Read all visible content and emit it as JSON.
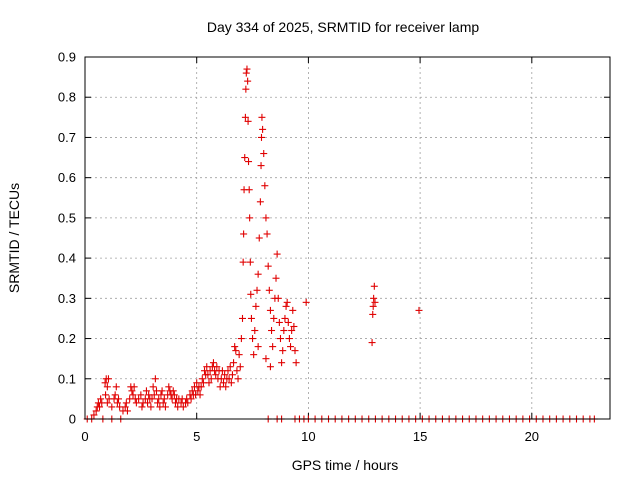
{
  "chart_data": {
    "type": "scatter",
    "title": "Day 334 of 2025, SRMTID for receiver lamp",
    "xlabel": "GPS time / hours",
    "ylabel": "SRMTID / TECUs",
    "xlim": [
      0,
      23.5
    ],
    "ylim": [
      0,
      0.9
    ],
    "x_ticks": [
      0,
      5,
      10,
      15,
      20
    ],
    "x_tick_labels": [
      "0",
      "5",
      "10",
      "15",
      "20"
    ],
    "y_ticks": [
      0,
      0.1,
      0.2,
      0.3,
      0.4,
      0.5,
      0.6,
      0.7,
      0.8,
      0.9
    ],
    "y_tick_labels": [
      "0",
      "0.1",
      "0.2",
      "0.3",
      "0.4",
      "0.5",
      "0.6",
      "0.7",
      "0.8",
      "0.9"
    ],
    "grid": true,
    "marker": "+",
    "color": "#e00000",
    "series": [
      {
        "name": "SRMTID",
        "points": [
          [
            0.1,
            0.0
          ],
          [
            0.3,
            0.0
          ],
          [
            0.8,
            0.0
          ],
          [
            1.2,
            0.0
          ],
          [
            1.6,
            0.0
          ],
          [
            0.4,
            0.01
          ],
          [
            0.5,
            0.02
          ],
          [
            0.55,
            0.03
          ],
          [
            0.6,
            0.04
          ],
          [
            0.65,
            0.03
          ],
          [
            0.7,
            0.05
          ],
          [
            0.75,
            0.04
          ],
          [
            0.9,
            0.09
          ],
          [
            0.95,
            0.1
          ],
          [
            1.0,
            0.08
          ],
          [
            1.05,
            0.1
          ],
          [
            0.92,
            0.06
          ],
          [
            1.0,
            0.04
          ],
          [
            1.08,
            0.05
          ],
          [
            1.2,
            0.03
          ],
          [
            1.3,
            0.05
          ],
          [
            1.35,
            0.06
          ],
          [
            1.4,
            0.08
          ],
          [
            1.45,
            0.04
          ],
          [
            1.5,
            0.05
          ],
          [
            1.55,
            0.03
          ],
          [
            1.7,
            0.02
          ],
          [
            1.8,
            0.03
          ],
          [
            1.85,
            0.04
          ],
          [
            1.9,
            0.02
          ],
          [
            2.0,
            0.05
          ],
          [
            2.05,
            0.08
          ],
          [
            2.1,
            0.07
          ],
          [
            2.15,
            0.06
          ],
          [
            2.2,
            0.08
          ],
          [
            2.25,
            0.05
          ],
          [
            2.3,
            0.04
          ],
          [
            2.4,
            0.05
          ],
          [
            2.5,
            0.06
          ],
          [
            2.55,
            0.03
          ],
          [
            2.6,
            0.04
          ],
          [
            2.7,
            0.05
          ],
          [
            2.75,
            0.07
          ],
          [
            2.8,
            0.04
          ],
          [
            2.85,
            0.06
          ],
          [
            2.9,
            0.05
          ],
          [
            2.95,
            0.03
          ],
          [
            3.0,
            0.05
          ],
          [
            3.05,
            0.08
          ],
          [
            3.1,
            0.06
          ],
          [
            3.15,
            0.1
          ],
          [
            3.2,
            0.07
          ],
          [
            3.25,
            0.04
          ],
          [
            3.3,
            0.05
          ],
          [
            3.35,
            0.03
          ],
          [
            3.4,
            0.06
          ],
          [
            3.45,
            0.07
          ],
          [
            3.5,
            0.04
          ],
          [
            3.55,
            0.05
          ],
          [
            3.6,
            0.03
          ],
          [
            3.7,
            0.06
          ],
          [
            3.75,
            0.08
          ],
          [
            3.8,
            0.07
          ],
          [
            3.85,
            0.06
          ],
          [
            3.9,
            0.05
          ],
          [
            3.95,
            0.07
          ],
          [
            4.0,
            0.06
          ],
          [
            4.05,
            0.04
          ],
          [
            4.1,
            0.05
          ],
          [
            4.15,
            0.03
          ],
          [
            4.2,
            0.05
          ],
          [
            4.3,
            0.04
          ],
          [
            4.35,
            0.05
          ],
          [
            4.4,
            0.03
          ],
          [
            4.5,
            0.04
          ],
          [
            4.55,
            0.05
          ],
          [
            4.6,
            0.04
          ],
          [
            4.7,
            0.06
          ],
          [
            4.75,
            0.05
          ],
          [
            4.8,
            0.07
          ],
          [
            4.85,
            0.06
          ],
          [
            4.9,
            0.08
          ],
          [
            4.95,
            0.06
          ],
          [
            5.0,
            0.09
          ],
          [
            5.05,
            0.07
          ],
          [
            5.1,
            0.08
          ],
          [
            5.15,
            0.06
          ],
          [
            5.2,
            0.08
          ],
          [
            5.25,
            0.1
          ],
          [
            5.3,
            0.09
          ],
          [
            5.35,
            0.12
          ],
          [
            5.4,
            0.11
          ],
          [
            5.45,
            0.13
          ],
          [
            5.5,
            0.11
          ],
          [
            5.55,
            0.09
          ],
          [
            5.6,
            0.12
          ],
          [
            5.65,
            0.1
          ],
          [
            5.7,
            0.13
          ],
          [
            5.75,
            0.14
          ],
          [
            5.8,
            0.12
          ],
          [
            5.85,
            0.11
          ],
          [
            5.9,
            0.13
          ],
          [
            5.95,
            0.1
          ],
          [
            6.0,
            0.12
          ],
          [
            6.05,
            0.08
          ],
          [
            6.1,
            0.1
          ],
          [
            6.15,
            0.12
          ],
          [
            6.2,
            0.09
          ],
          [
            6.25,
            0.11
          ],
          [
            6.3,
            0.08
          ],
          [
            6.35,
            0.1
          ],
          [
            6.4,
            0.12
          ],
          [
            6.45,
            0.1
          ],
          [
            6.5,
            0.13
          ],
          [
            6.55,
            0.09
          ],
          [
            6.6,
            0.11
          ],
          [
            6.65,
            0.14
          ],
          [
            6.7,
            0.18
          ],
          [
            6.75,
            0.17
          ],
          [
            6.8,
            0.12
          ],
          [
            6.85,
            0.1
          ],
          [
            6.9,
            0.16
          ],
          [
            6.95,
            0.13
          ],
          [
            7.0,
            0.2
          ],
          [
            7.05,
            0.25
          ],
          [
            7.08,
            0.39
          ],
          [
            7.1,
            0.46
          ],
          [
            7.12,
            0.57
          ],
          [
            7.15,
            0.65
          ],
          [
            7.18,
            0.75
          ],
          [
            7.2,
            0.82
          ],
          [
            7.22,
            0.86
          ],
          [
            7.25,
            0.87
          ],
          [
            7.28,
            0.84
          ],
          [
            7.3,
            0.74
          ],
          [
            7.32,
            0.64
          ],
          [
            7.35,
            0.57
          ],
          [
            7.37,
            0.5
          ],
          [
            7.4,
            0.39
          ],
          [
            7.42,
            0.31
          ],
          [
            7.45,
            0.25
          ],
          [
            7.5,
            0.2
          ],
          [
            7.55,
            0.16
          ],
          [
            7.6,
            0.22
          ],
          [
            7.65,
            0.28
          ],
          [
            7.7,
            0.32
          ],
          [
            7.75,
            0.36
          ],
          [
            7.8,
            0.45
          ],
          [
            7.85,
            0.54
          ],
          [
            7.88,
            0.63
          ],
          [
            7.9,
            0.7
          ],
          [
            7.92,
            0.75
          ],
          [
            7.95,
            0.72
          ],
          [
            8.0,
            0.66
          ],
          [
            8.05,
            0.58
          ],
          [
            8.1,
            0.5
          ],
          [
            8.15,
            0.46
          ],
          [
            8.2,
            0.38
          ],
          [
            8.25,
            0.32
          ],
          [
            8.3,
            0.27
          ],
          [
            8.35,
            0.22
          ],
          [
            8.4,
            0.18
          ],
          [
            8.45,
            0.25
          ],
          [
            8.5,
            0.3
          ],
          [
            8.55,
            0.35
          ],
          [
            8.6,
            0.41
          ],
          [
            8.65,
            0.3
          ],
          [
            8.7,
            0.24
          ],
          [
            8.75,
            0.2
          ],
          [
            8.8,
            0.14
          ],
          [
            8.85,
            0.17
          ],
          [
            8.9,
            0.22
          ],
          [
            8.95,
            0.25
          ],
          [
            9.0,
            0.28
          ],
          [
            9.05,
            0.29
          ],
          [
            9.1,
            0.24
          ],
          [
            9.15,
            0.2
          ],
          [
            9.2,
            0.18
          ],
          [
            9.25,
            0.22
          ],
          [
            9.3,
            0.27
          ],
          [
            9.35,
            0.23
          ],
          [
            9.4,
            0.17
          ],
          [
            9.45,
            0.14
          ],
          [
            9.9,
            0.29
          ],
          [
            8.1,
            0.15
          ],
          [
            8.3,
            0.13
          ],
          [
            7.75,
            0.18
          ],
          [
            12.85,
            0.19
          ],
          [
            12.88,
            0.26
          ],
          [
            12.9,
            0.28
          ],
          [
            12.92,
            0.3
          ],
          [
            12.95,
            0.33
          ],
          [
            12.98,
            0.29
          ],
          [
            14.95,
            0.27
          ],
          [
            8.2,
            0.0
          ],
          [
            8.6,
            0.0
          ],
          [
            8.8,
            0.0
          ],
          [
            9.4,
            0.0
          ],
          [
            9.6,
            0.0
          ],
          [
            9.8,
            0.0
          ],
          [
            10.0,
            0.0
          ],
          [
            10.3,
            0.0
          ],
          [
            10.6,
            0.0
          ],
          [
            10.9,
            0.0
          ],
          [
            11.2,
            0.0
          ],
          [
            11.5,
            0.0
          ],
          [
            11.8,
            0.0
          ],
          [
            12.1,
            0.0
          ],
          [
            12.4,
            0.0
          ],
          [
            12.7,
            0.0
          ],
          [
            13.0,
            0.0
          ],
          [
            13.3,
            0.0
          ],
          [
            13.6,
            0.0
          ],
          [
            13.9,
            0.0
          ],
          [
            14.2,
            0.0
          ],
          [
            14.5,
            0.0
          ],
          [
            14.8,
            0.0
          ],
          [
            15.1,
            0.0
          ],
          [
            15.4,
            0.0
          ],
          [
            15.7,
            0.0
          ],
          [
            16.0,
            0.0
          ],
          [
            16.3,
            0.0
          ],
          [
            16.6,
            0.0
          ],
          [
            16.9,
            0.0
          ],
          [
            17.2,
            0.0
          ],
          [
            17.5,
            0.0
          ],
          [
            17.8,
            0.0
          ],
          [
            18.1,
            0.0
          ],
          [
            18.4,
            0.0
          ],
          [
            18.7,
            0.0
          ],
          [
            19.0,
            0.0
          ],
          [
            19.3,
            0.0
          ],
          [
            19.6,
            0.0
          ],
          [
            19.9,
            0.0
          ],
          [
            20.2,
            0.0
          ],
          [
            20.5,
            0.0
          ],
          [
            20.8,
            0.0
          ],
          [
            21.1,
            0.0
          ],
          [
            21.4,
            0.0
          ],
          [
            21.7,
            0.0
          ],
          [
            22.0,
            0.0
          ],
          [
            22.3,
            0.0
          ],
          [
            22.6,
            0.0
          ],
          [
            22.8,
            0.0
          ]
        ]
      }
    ]
  }
}
